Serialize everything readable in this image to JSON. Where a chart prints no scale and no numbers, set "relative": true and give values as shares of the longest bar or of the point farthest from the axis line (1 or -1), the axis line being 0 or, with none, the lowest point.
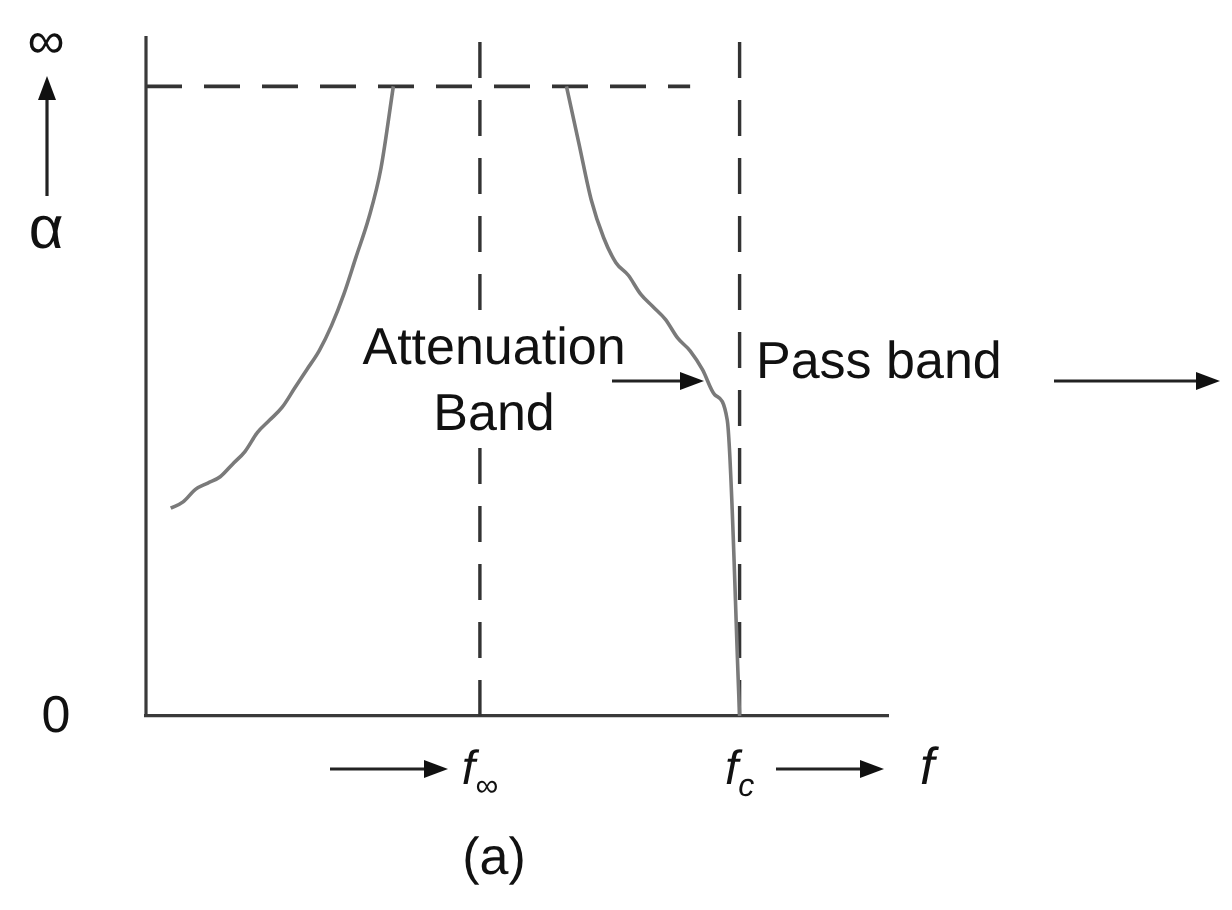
{
  "chart_data": {
    "type": "line",
    "relative": true,
    "categories": [
      null,
      null,
      null,
      null,
      null,
      null,
      null,
      null,
      null,
      null,
      null,
      null,
      null,
      null,
      null,
      null,
      null,
      null,
      null,
      null,
      null,
      null,
      null,
      null,
      null,
      null,
      null,
      "f$_{∞}$",
      null,
      null,
      null,
      null,
      null,
      null,
      null,
      null,
      null,
      null,
      null,
      null,
      null,
      null,
      null,
      null,
      null,
      null,
      null,
      null,
      "f$_{c}$",
      null,
      null,
      null,
      null,
      null,
      null,
      null,
      null,
      null,
      null,
      null,
      null
    ],
    "series": [
      {
        "color": "#7a7a7a",
        "values": [
          null,
          null,
          0.33,
          0.34,
          0.36,
          0.37,
          0.38,
          0.4,
          0.42,
          0.45,
          0.47,
          0.49,
          0.52,
          0.55,
          0.58,
          0.62,
          0.67,
          0.73,
          0.79,
          0.87,
          1.0,
          null,
          null,
          null,
          null,
          null,
          null,
          null,
          null,
          null,
          null,
          null,
          null,
          null,
          1.0,
          0.91,
          0.82,
          0.76,
          0.72,
          0.7,
          0.67,
          0.65,
          0.63,
          0.6,
          0.58,
          0.55,
          0.51,
          0.47,
          0,
          null,
          null,
          null,
          null,
          null,
          null,
          null,
          null,
          null,
          null,
          null,
          null
        ]
      },
      {
        "color": "#333333",
        "line_style": "dashed",
        "values": [
          1,
          1,
          1,
          1,
          1,
          1,
          1,
          1,
          1,
          1,
          1,
          1,
          1,
          1,
          1,
          1,
          1,
          1,
          1,
          1,
          1,
          1,
          1,
          1,
          1,
          1,
          1,
          1,
          1,
          1,
          1,
          1,
          1,
          1,
          1,
          1,
          1,
          1,
          1,
          1,
          1,
          1,
          1,
          1,
          1,
          null,
          null,
          null,
          null,
          null,
          null,
          null,
          null,
          null,
          null,
          null,
          null,
          null,
          null,
          null,
          null
        ]
      }
    ],
    "xlabel": "f",
    "ylabel": "α",
    "ref_lines": [
      {
        "axis": "x",
        "value": "f$_{∞}$",
        "line_style": "dashed",
        "color": "#333333"
      },
      {
        "axis": "x",
        "value": "f$_{c}$",
        "line_style": "dashed",
        "color": "#333333"
      }
    ],
    "annotations": [
      "∞",
      "0",
      "Attenuation Band",
      "Pass band",
      "(a)"
    ],
    "grid": false,
    "legend": false
  }
}
